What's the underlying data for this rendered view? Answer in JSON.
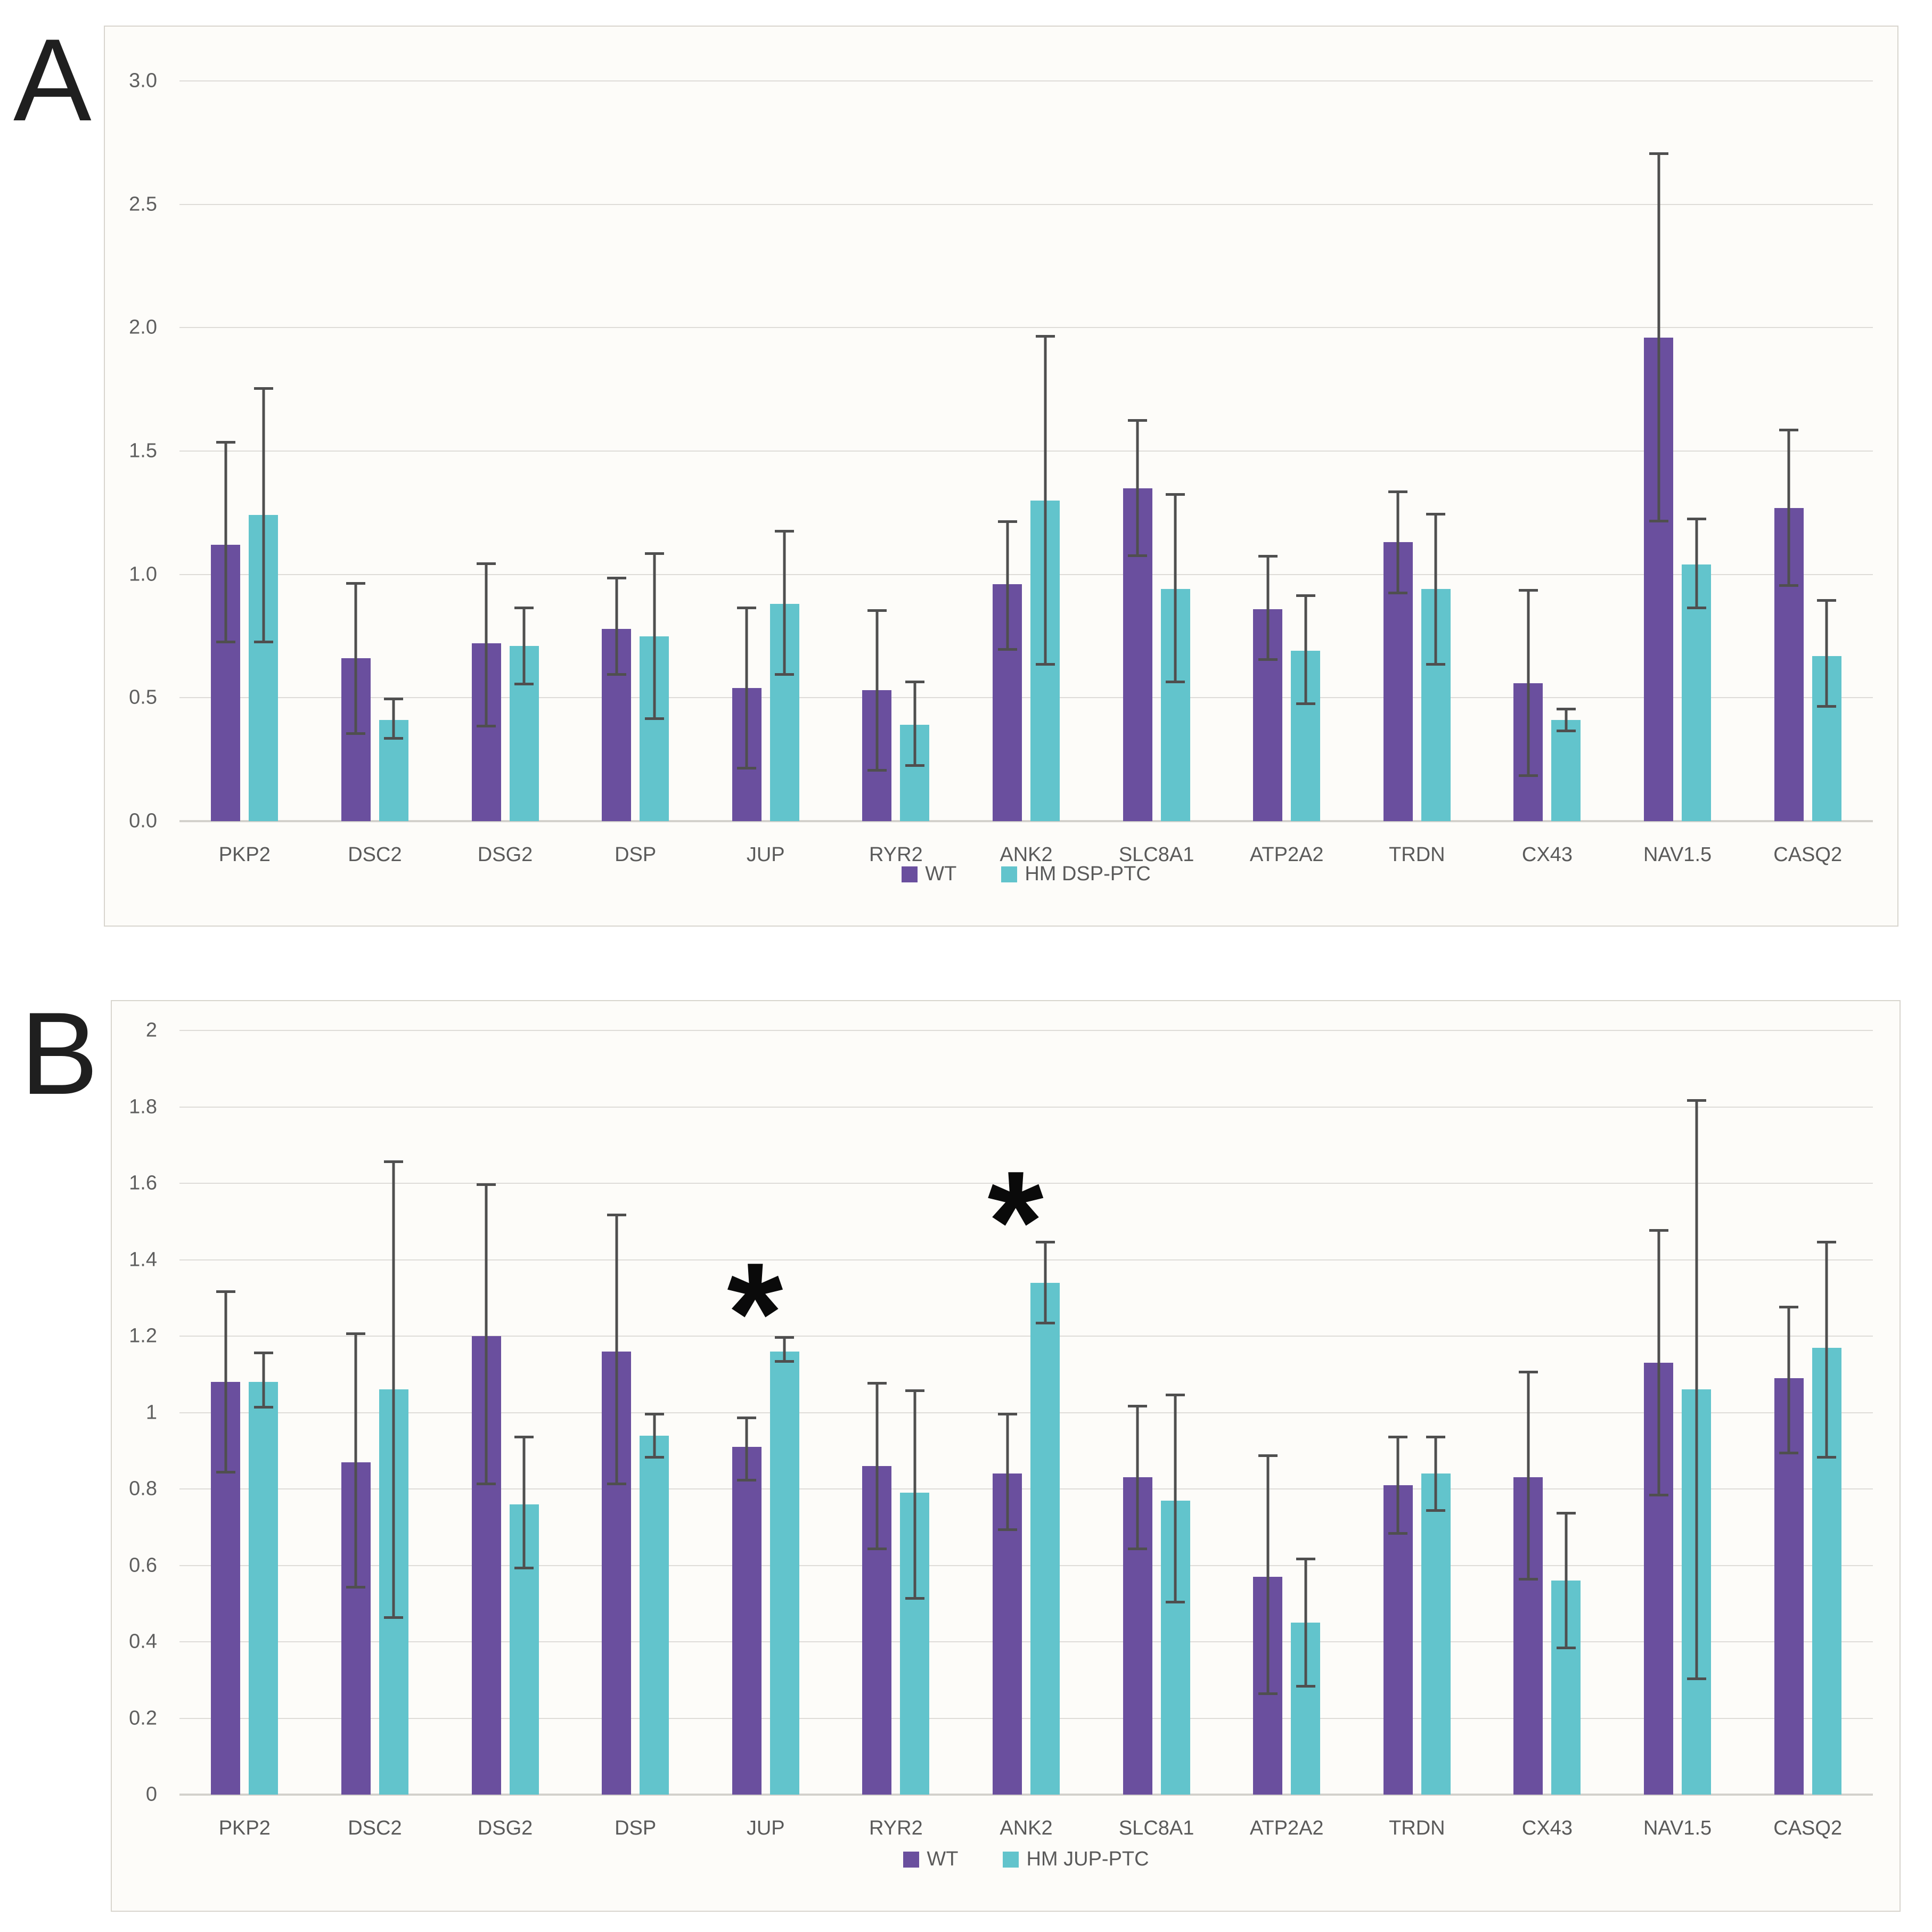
{
  "colors": {
    "wt": "#6A4F9E",
    "hm": "#62C4CC",
    "error_bar": "#4F4F4F",
    "gridline": "#DEDCD8",
    "frame_border": "#D8D5CE",
    "panel_background": "#FDFCF9",
    "text": "#5A5A5A",
    "panel_letter": "#1F1F1F"
  },
  "panels": [
    {
      "letter": "A"
    },
    {
      "letter": "B"
    }
  ],
  "chart_data": [
    {
      "type": "bar",
      "panel": "A",
      "title": "",
      "xlabel": "",
      "ylabel": "",
      "categories": [
        "PKP2",
        "DSC2",
        "DSG2",
        "DSP",
        "JUP",
        "RYR2",
        "ANK2",
        "SLC8A1",
        "ATP2A2",
        "TRDN",
        "CX43",
        "NAV1.5",
        "CASQ2"
      ],
      "ylim": [
        0,
        3
      ],
      "yticks": [
        0,
        0.5,
        1.0,
        1.5,
        2.0,
        2.5,
        3.0
      ],
      "ytick_labels": [
        "0.0",
        "0.5",
        "1.0",
        "1.5",
        "2.0",
        "2.5",
        "3.0"
      ],
      "grid": true,
      "legend_position": "bottom",
      "series": [
        {
          "name": "WT",
          "color_key": "wt",
          "values": [
            1.12,
            0.66,
            0.72,
            0.78,
            0.54,
            0.53,
            0.96,
            1.35,
            0.86,
            1.13,
            0.56,
            1.96,
            1.27
          ],
          "err_low": [
            0.72,
            0.35,
            0.38,
            0.59,
            0.21,
            0.2,
            0.69,
            1.07,
            0.65,
            0.92,
            0.18,
            1.21,
            0.95
          ],
          "err_high": [
            1.54,
            0.97,
            1.05,
            0.99,
            0.87,
            0.86,
            1.22,
            1.63,
            1.08,
            1.34,
            0.94,
            2.71,
            1.59
          ]
        },
        {
          "name": "HM DSP-PTC",
          "color_key": "hm",
          "values": [
            1.24,
            0.41,
            0.71,
            0.75,
            0.88,
            0.39,
            1.3,
            0.94,
            0.69,
            0.94,
            0.41,
            1.04,
            0.67
          ],
          "err_low": [
            0.72,
            0.33,
            0.55,
            0.41,
            0.59,
            0.22,
            0.63,
            0.56,
            0.47,
            0.63,
            0.36,
            0.86,
            0.46
          ],
          "err_high": [
            1.76,
            0.5,
            0.87,
            1.09,
            1.18,
            0.57,
            1.97,
            1.33,
            0.92,
            1.25,
            0.46,
            1.23,
            0.9
          ]
        }
      ],
      "annotations": []
    },
    {
      "type": "bar",
      "panel": "B",
      "title": "",
      "xlabel": "",
      "ylabel": "",
      "categories": [
        "PKP2",
        "DSC2",
        "DSG2",
        "DSP",
        "JUP",
        "RYR2",
        "ANK2",
        "SLC8A1",
        "ATP2A2",
        "TRDN",
        "CX43",
        "NAV1.5",
        "CASQ2"
      ],
      "ylim": [
        0,
        2
      ],
      "yticks": [
        0,
        0.2,
        0.4,
        0.6,
        0.8,
        1.0,
        1.2,
        1.4,
        1.6,
        1.8,
        2.0
      ],
      "ytick_labels": [
        "0",
        "0.2",
        "0.4",
        "0.6",
        "0.8",
        "1",
        "1.2",
        "1.4",
        "1.6",
        "1.8",
        "2"
      ],
      "grid": true,
      "legend_position": "bottom",
      "series": [
        {
          "name": "WT",
          "color_key": "wt",
          "values": [
            1.08,
            0.87,
            1.2,
            1.16,
            0.91,
            0.86,
            0.84,
            0.83,
            0.57,
            0.81,
            0.83,
            1.13,
            1.09
          ],
          "err_low": [
            0.84,
            0.54,
            0.81,
            0.81,
            0.82,
            0.64,
            0.69,
            0.64,
            0.26,
            0.68,
            0.56,
            0.78,
            0.89
          ],
          "err_high": [
            1.32,
            1.21,
            1.6,
            1.52,
            0.99,
            1.08,
            1.0,
            1.02,
            0.89,
            0.94,
            1.11,
            1.48,
            1.28
          ]
        },
        {
          "name": "HM JUP-PTC",
          "color_key": "hm",
          "values": [
            1.08,
            1.06,
            0.76,
            0.94,
            1.16,
            0.79,
            1.34,
            0.77,
            0.45,
            0.84,
            0.56,
            1.06,
            1.17
          ],
          "err_low": [
            1.01,
            0.46,
            0.59,
            0.88,
            1.13,
            0.51,
            1.23,
            0.5,
            0.28,
            0.74,
            0.38,
            0.3,
            0.88
          ],
          "err_high": [
            1.16,
            1.66,
            0.94,
            1.0,
            1.2,
            1.06,
            1.45,
            1.05,
            0.62,
            0.94,
            0.74,
            1.82,
            1.45
          ]
        }
      ],
      "annotations": [
        {
          "symbol": "*",
          "category": "JUP",
          "series": "HM JUP-PTC",
          "y_value": 1.3
        },
        {
          "symbol": "*",
          "category": "ANK2",
          "series": "HM JUP-PTC",
          "y_value": 1.54
        }
      ]
    }
  ]
}
